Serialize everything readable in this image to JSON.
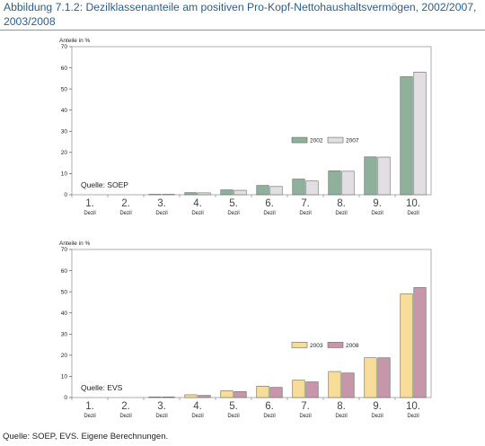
{
  "figure": {
    "title": "Abbildung 7.1.2: Dezilklassenanteile am positiven Pro-Kopf-Nettohaushaltsvermögen, 2002/2007, 2003/2008",
    "source": "Quelle: SOEP, EVS. Eigene Berechnungen."
  },
  "chart_data": [
    {
      "type": "bar",
      "ylabel": "Anteile in %",
      "ylim": [
        0,
        70
      ],
      "yticks": [
        0,
        10,
        20,
        30,
        40,
        50,
        60,
        70
      ],
      "categories": [
        "1.",
        "2.",
        "3.",
        "4.",
        "5.",
        "6.",
        "7.",
        "8.",
        "9.",
        "10."
      ],
      "category_sublabel": "Dezil",
      "annotation": "Quelle: SOEP",
      "legend_position": "center-right",
      "grid": false,
      "series": [
        {
          "name": "2002",
          "color": "#8fb19b",
          "values": [
            0,
            0,
            0.2,
            1.0,
            2.3,
            4.4,
            7.4,
            11.3,
            17.9,
            55.8
          ]
        },
        {
          "name": "2007",
          "color": "#e3dee2",
          "values": [
            0,
            0,
            0.2,
            0.9,
            2.1,
            3.9,
            6.5,
            11.1,
            17.8,
            58.0
          ]
        }
      ]
    },
    {
      "type": "bar",
      "ylabel": "Anteile in %",
      "ylim": [
        0,
        70
      ],
      "yticks": [
        0,
        10,
        20,
        30,
        40,
        50,
        60,
        70
      ],
      "categories": [
        "1.",
        "2.",
        "3.",
        "4.",
        "5.",
        "6.",
        "7.",
        "8.",
        "9.",
        "10."
      ],
      "category_sublabel": "Dezil",
      "annotation": "Quelle: EVS",
      "legend_position": "center-right",
      "grid": false,
      "series": [
        {
          "name": "2003",
          "color": "#f7dd99",
          "values": [
            0,
            0,
            0.3,
            1.3,
            3.2,
            5.4,
            8.2,
            12.3,
            18.8,
            49.0
          ]
        },
        {
          "name": "2008",
          "color": "#c896aa",
          "values": [
            0,
            0,
            0.3,
            1.0,
            2.8,
            4.8,
            7.4,
            11.6,
            18.8,
            52.0
          ]
        }
      ]
    }
  ]
}
